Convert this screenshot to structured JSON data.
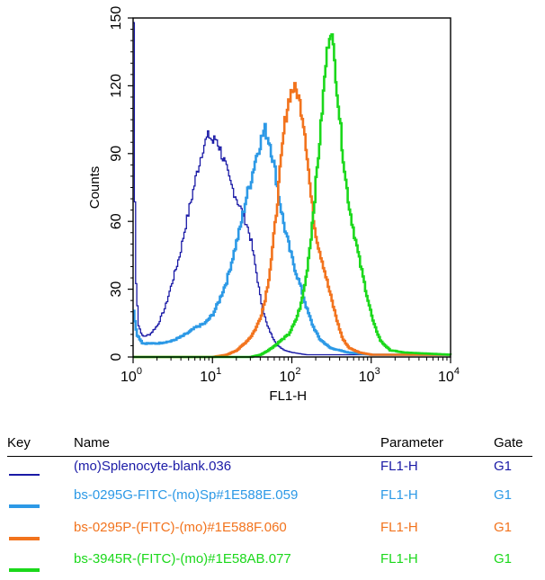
{
  "chart_data": {
    "type": "line",
    "xlabel": "FL1-H",
    "ylabel": "Counts",
    "x_scale": "log",
    "xlim": [
      1,
      10000
    ],
    "ylim": [
      0,
      150
    ],
    "x_ticks": [
      {
        "base": "10",
        "exp": "0",
        "value": 1
      },
      {
        "base": "10",
        "exp": "1",
        "value": 10
      },
      {
        "base": "10",
        "exp": "2",
        "value": 100
      },
      {
        "base": "10",
        "exp": "3",
        "value": 1000
      },
      {
        "base": "10",
        "exp": "4",
        "value": 10000
      }
    ],
    "y_ticks": [
      "0",
      "30",
      "60",
      "90",
      "120",
      "150"
    ],
    "y_tick_values": [
      0,
      30,
      60,
      90,
      120,
      150
    ],
    "series": [
      {
        "name": "(mo)Splenocyte-blank.036",
        "color": "#1a1aa6",
        "stroke_width": 1.3,
        "points": [
          [
            1,
            148
          ],
          [
            1.05,
            40
          ],
          [
            1.15,
            14
          ],
          [
            1.3,
            9
          ],
          [
            1.6,
            10
          ],
          [
            2,
            14
          ],
          [
            2.5,
            22
          ],
          [
            3,
            32
          ],
          [
            3.8,
            45
          ],
          [
            4.5,
            58
          ],
          [
            5.5,
            72
          ],
          [
            6.5,
            84
          ],
          [
            7.5,
            93
          ],
          [
            8.5,
            97
          ],
          [
            9,
            98
          ],
          [
            10,
            95
          ],
          [
            11,
            97
          ],
          [
            12,
            93
          ],
          [
            14,
            86
          ],
          [
            16,
            78
          ],
          [
            19,
            72
          ],
          [
            22,
            66
          ],
          [
            26,
            60
          ],
          [
            30,
            52
          ],
          [
            35,
            38
          ],
          [
            40,
            25
          ],
          [
            48,
            14
          ],
          [
            56,
            9
          ],
          [
            65,
            5
          ],
          [
            80,
            3
          ],
          [
            100,
            2
          ],
          [
            150,
            1
          ],
          [
            300,
            1
          ],
          [
            1000,
            1
          ],
          [
            10000,
            1
          ]
        ]
      },
      {
        "name": "bs-0295G-FITC-(mo)Sp#1E588E.059",
        "color": "#2c99e6",
        "stroke_width": 2.6,
        "points": [
          [
            1,
            20
          ],
          [
            1.1,
            10
          ],
          [
            1.3,
            6
          ],
          [
            2,
            6
          ],
          [
            3,
            7
          ],
          [
            4,
            9
          ],
          [
            5,
            11
          ],
          [
            6,
            13
          ],
          [
            8,
            15
          ],
          [
            10,
            19
          ],
          [
            12,
            25
          ],
          [
            15,
            34
          ],
          [
            18,
            45
          ],
          [
            22,
            57
          ],
          [
            26,
            70
          ],
          [
            30,
            78
          ],
          [
            34,
            87
          ],
          [
            38,
            93
          ],
          [
            42,
            98
          ],
          [
            45,
            101
          ],
          [
            48,
            98
          ],
          [
            52,
            95
          ],
          [
            56,
            89
          ],
          [
            62,
            80
          ],
          [
            70,
            68
          ],
          [
            80,
            57
          ],
          [
            95,
            46
          ],
          [
            110,
            38
          ],
          [
            130,
            30
          ],
          [
            150,
            22
          ],
          [
            180,
            14
          ],
          [
            220,
            8
          ],
          [
            300,
            4
          ],
          [
            500,
            2
          ],
          [
            1000,
            1
          ],
          [
            10000,
            1
          ]
        ]
      },
      {
        "name": "bs-0295P-(FITC)-(mo)#1E588F.060",
        "color": "#f2731d",
        "stroke_width": 2.6,
        "points": [
          [
            1,
            0
          ],
          [
            10,
            0
          ],
          [
            15,
            1
          ],
          [
            20,
            3
          ],
          [
            25,
            6
          ],
          [
            30,
            9
          ],
          [
            35,
            13
          ],
          [
            40,
            18
          ],
          [
            45,
            25
          ],
          [
            50,
            34
          ],
          [
            55,
            45
          ],
          [
            60,
            57
          ],
          [
            65,
            70
          ],
          [
            70,
            82
          ],
          [
            75,
            93
          ],
          [
            80,
            103
          ],
          [
            88,
            112
          ],
          [
            95,
            117
          ],
          [
            105,
            119
          ],
          [
            115,
            117
          ],
          [
            125,
            112
          ],
          [
            140,
            103
          ],
          [
            155,
            88
          ],
          [
            170,
            72
          ],
          [
            190,
            58
          ],
          [
            210,
            50
          ],
          [
            240,
            42
          ],
          [
            280,
            32
          ],
          [
            330,
            22
          ],
          [
            380,
            14
          ],
          [
            430,
            8
          ],
          [
            520,
            4
          ],
          [
            700,
            2
          ],
          [
            1000,
            1
          ],
          [
            10000,
            1
          ]
        ]
      },
      {
        "name": "bs-3945R-(FITC)-(mo)#1E58AB.077",
        "color": "#1bd81b",
        "stroke_width": 2.6,
        "points": [
          [
            1,
            0
          ],
          [
            30,
            0
          ],
          [
            40,
            1
          ],
          [
            50,
            3
          ],
          [
            60,
            5
          ],
          [
            70,
            7
          ],
          [
            90,
            10
          ],
          [
            110,
            16
          ],
          [
            130,
            24
          ],
          [
            150,
            36
          ],
          [
            170,
            52
          ],
          [
            190,
            70
          ],
          [
            210,
            87
          ],
          [
            230,
            103
          ],
          [
            250,
            120
          ],
          [
            270,
            133
          ],
          [
            290,
            142
          ],
          [
            305,
            145
          ],
          [
            320,
            140
          ],
          [
            345,
            128
          ],
          [
            380,
            112
          ],
          [
            420,
            95
          ],
          [
            470,
            78
          ],
          [
            530,
            65
          ],
          [
            600,
            55
          ],
          [
            680,
            45
          ],
          [
            780,
            35
          ],
          [
            900,
            25
          ],
          [
            1050,
            15
          ],
          [
            1300,
            7
          ],
          [
            1700,
            3
          ],
          [
            2500,
            2
          ],
          [
            10000,
            1
          ]
        ]
      }
    ]
  },
  "legend": {
    "headers": {
      "key": "Key",
      "name": "Name",
      "parameter": "Parameter",
      "gate": "Gate"
    },
    "rows": [
      {
        "name": "(mo)Splenocyte-blank.036",
        "parameter": "FL1-H",
        "gate": "G1",
        "color": "#1a1aa6"
      },
      {
        "name": "bs-0295G-FITC-(mo)Sp#1E588E.059",
        "parameter": "FL1-H",
        "gate": "G1",
        "color": "#2c99e6"
      },
      {
        "name": "bs-0295P-(FITC)-(mo)#1E588F.060",
        "parameter": "FL1-H",
        "gate": "G1",
        "color": "#f2731d"
      },
      {
        "name": "bs-3945R-(FITC)-(mo)#1E58AB.077",
        "parameter": "FL1-H",
        "gate": "G1",
        "color": "#1bd81b"
      }
    ]
  }
}
